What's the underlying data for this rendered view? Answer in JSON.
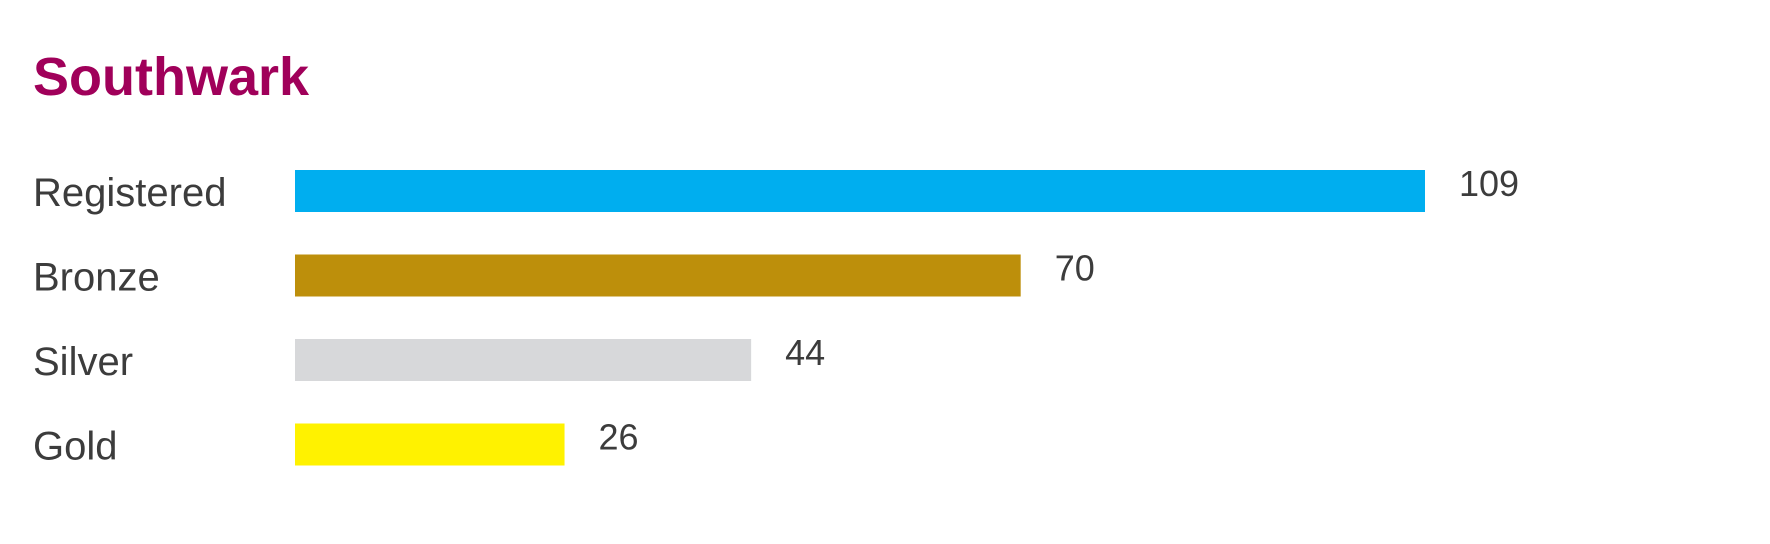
{
  "chart_data": {
    "type": "bar",
    "orientation": "horizontal",
    "title": "Southwark",
    "categories": [
      "Registered",
      "Bronze",
      "Silver",
      "Gold"
    ],
    "values": [
      109,
      70,
      44,
      26
    ],
    "colors": [
      "#00aeef",
      "#bd8f0b",
      "#d7d8da",
      "#fff200"
    ]
  }
}
